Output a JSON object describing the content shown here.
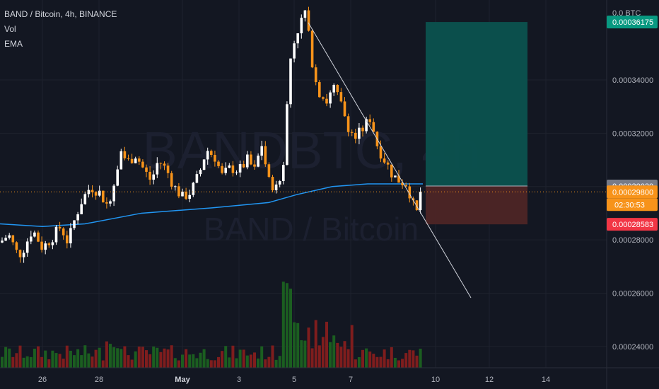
{
  "legend": {
    "title": "BAND / Bitcoin, 4h, BINANCE",
    "vol_label": "Vol",
    "ema_label": "EMA"
  },
  "watermark": {
    "main": "BANDBTC, 4h",
    "sub": "BAND / Bitcoin"
  },
  "price_axis": {
    "top_label": "0.0 BTC",
    "ticks": [
      {
        "value": 0.00034,
        "label": "0.00034000"
      },
      {
        "value": 0.00032,
        "label": "0.00032000"
      },
      {
        "value": 0.0003,
        "label": "0.00030000"
      },
      {
        "value": 0.00028,
        "label": "0.00028000"
      },
      {
        "value": 0.00026,
        "label": "0.00026000"
      },
      {
        "value": 0.00024,
        "label": "0.00024000"
      }
    ],
    "tags": [
      {
        "value": 0.00036175,
        "label": "0.00036175",
        "color": "#089981"
      },
      {
        "value": 0.0003002,
        "label": "0.00030020",
        "color": "#787b86"
      },
      {
        "value": 0.000298,
        "label": "0.00029800",
        "color": "#f7931a"
      },
      {
        "value": 0.00028583,
        "label": "0.00028583",
        "color": "#f23645"
      }
    ],
    "countdown": {
      "label": "02:30:53",
      "color": "#f7931a"
    }
  },
  "time_axis": {
    "ticks": [
      "26",
      "28",
      "May",
      "3",
      "5",
      "7",
      "10",
      "12",
      "14"
    ]
  },
  "colors": {
    "up": "#ffffff",
    "down": "#f7931a",
    "ema": "#2196f3",
    "volume_up": "#1b5e20",
    "volume_down": "#7f1d1d",
    "target_zone": "#0b524f",
    "stop_zone": "#4d2526",
    "trendline": "#d1d4dc",
    "grid": "#1e222d"
  },
  "chart_data": {
    "type": "candlestick",
    "interval": "4h",
    "symbol": "BAND / Bitcoin",
    "exchange": "BINANCE",
    "ylim": [
      0.000232,
      0.00037
    ],
    "last_price": 0.000298,
    "position": {
      "entry": 0.0003002,
      "target": 0.00036175,
      "stop": 0.00028583
    },
    "series": [
      {
        "name": "Vol",
        "type": "bar"
      },
      {
        "name": "EMA",
        "type": "line"
      }
    ]
  }
}
